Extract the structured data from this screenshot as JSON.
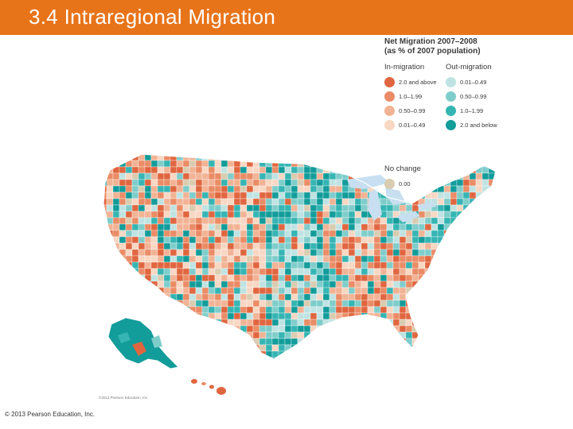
{
  "slide": {
    "title": "3.4 Intraregional Migration",
    "copyright": "© 2013 Pearson Education, Inc.",
    "map_credit": "©2013 Pearson Education, Inc."
  },
  "legend": {
    "title_line1": "Net Migration 2007–2008",
    "title_line2": "(as % of 2007 population)",
    "in_migration": {
      "heading": "In-migration",
      "items": [
        {
          "label": "2.0 and above",
          "color": "#e0663f"
        },
        {
          "label": "1.0–1.99",
          "color": "#ea8c66"
        },
        {
          "label": "0.50–0.99",
          "color": "#f2b395"
        },
        {
          "label": "0.01–0.49",
          "color": "#f8d7c3"
        }
      ]
    },
    "out_migration": {
      "heading": "Out-migration",
      "items": [
        {
          "label": "0.01–0.49",
          "color": "#bfe3e2"
        },
        {
          "label": "0.50–0.99",
          "color": "#7fcdcb"
        },
        {
          "label": "1.0–1.99",
          "color": "#35b5b3"
        },
        {
          "label": "2.0 and below",
          "color": "#129c9a"
        }
      ]
    },
    "no_change": {
      "heading": "No change",
      "label": "0.00",
      "color": "#d9ccb0"
    }
  },
  "map": {
    "water_color": "#c7dff0",
    "region_pattern": [
      {
        "region": "pacific-northwest",
        "dominant": "in-migration"
      },
      {
        "region": "mountain-west",
        "dominant": "in-migration"
      },
      {
        "region": "great-plains",
        "dominant": "out-migration"
      },
      {
        "region": "midwest",
        "dominant": "out-migration"
      },
      {
        "region": "southeast",
        "dominant": "in-migration"
      },
      {
        "region": "northeast",
        "dominant": "out-migration"
      },
      {
        "region": "alaska",
        "dominant": "out-migration"
      },
      {
        "region": "hawaii",
        "dominant": "in-migration"
      }
    ]
  }
}
